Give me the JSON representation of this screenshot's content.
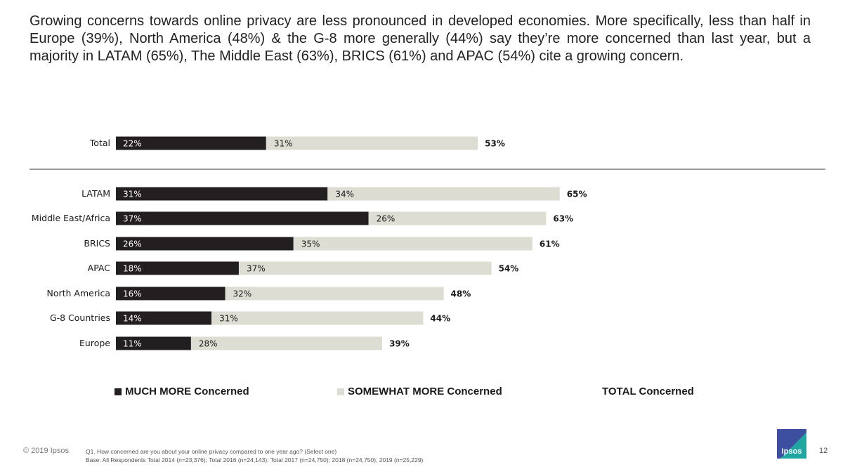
{
  "headline": "Growing concerns towards online privacy are less pronounced in developed economies. More specifically, less than half in Europe (39%), North America (48%) & the G-8 more generally (44%) say they’re more concerned than last year, but a majority in LATAM (65%), The Middle East (63%), BRICS (61%) and APAC (54%) cite a growing concern.",
  "chart_data": {
    "type": "bar",
    "orientation": "horizontal",
    "stacked": true,
    "categories": [
      "Total",
      "LATAM",
      "Middle East/Africa",
      "BRICS",
      "APAC",
      "North America",
      "G-8 Countries",
      "Europe"
    ],
    "series": [
      {
        "name": "MUCH MORE Concerned",
        "color": "#231f20",
        "values": [
          22,
          31,
          37,
          26,
          18,
          16,
          14,
          11
        ]
      },
      {
        "name": "SOMEWHAT MORE Concerned",
        "color": "#deddd3",
        "values": [
          31,
          34,
          26,
          35,
          37,
          32,
          31,
          28
        ]
      }
    ],
    "totals": {
      "name": "TOTAL Concerned",
      "values": [
        53,
        65,
        63,
        61,
        54,
        48,
        44,
        39
      ]
    },
    "value_suffix": "%",
    "xlim": [
      0,
      100
    ],
    "separator_after": "Total",
    "grid": false,
    "legend_position": "bottom"
  },
  "footer": {
    "copyright": "© 2019 Ipsos",
    "question": "Q1. How concerned are you about your online privacy compared to one year ago? (Select one)",
    "base": "Base: All Respondents Total  2014 (n=23,376); Total 2016 (n=24,143); Total 2017 (n=24,750); 2018 (n=24,750); 2019 (n=25,229)",
    "logo_text": "Ipsos",
    "page_number": "12"
  }
}
